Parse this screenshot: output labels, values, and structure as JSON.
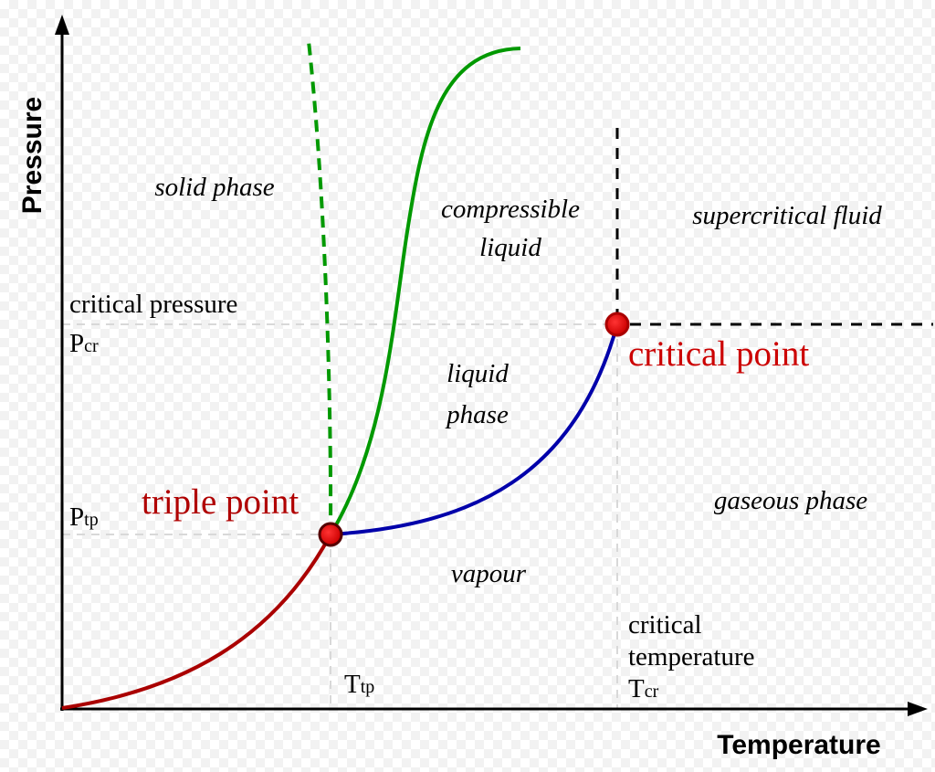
{
  "axes": {
    "x_title": "Temperature",
    "y_title": "Pressure"
  },
  "regions": {
    "solid": "solid phase",
    "compressible_line1": "compressible",
    "compressible_line2": "liquid",
    "supercritical": "supercritical fluid",
    "liquid_line1": "liquid",
    "liquid_line2": "phase",
    "gaseous": "gaseous phase",
    "vapour": "vapour"
  },
  "labels": {
    "critical_pressure": "critical pressure",
    "p_cr_main": "P",
    "p_cr_sub": "cr",
    "p_tp_main": "P",
    "p_tp_sub": "tp",
    "t_tp_main": "T",
    "t_tp_sub": "tp",
    "critical_temperature_line1": "critical",
    "critical_temperature_line2": "temperature",
    "t_cr_main": "T",
    "t_cr_sub": "cr"
  },
  "points": {
    "triple": "triple point",
    "critical": "critical point"
  },
  "colors": {
    "sublimation_curve": "#aa0000",
    "melting_curve": "#009900",
    "vaporization_curve": "#0000aa",
    "point_label": "#cc0000",
    "point_fill": "#dd0000",
    "guide_lines": "#d8d8d8",
    "axes": "#000000"
  }
}
